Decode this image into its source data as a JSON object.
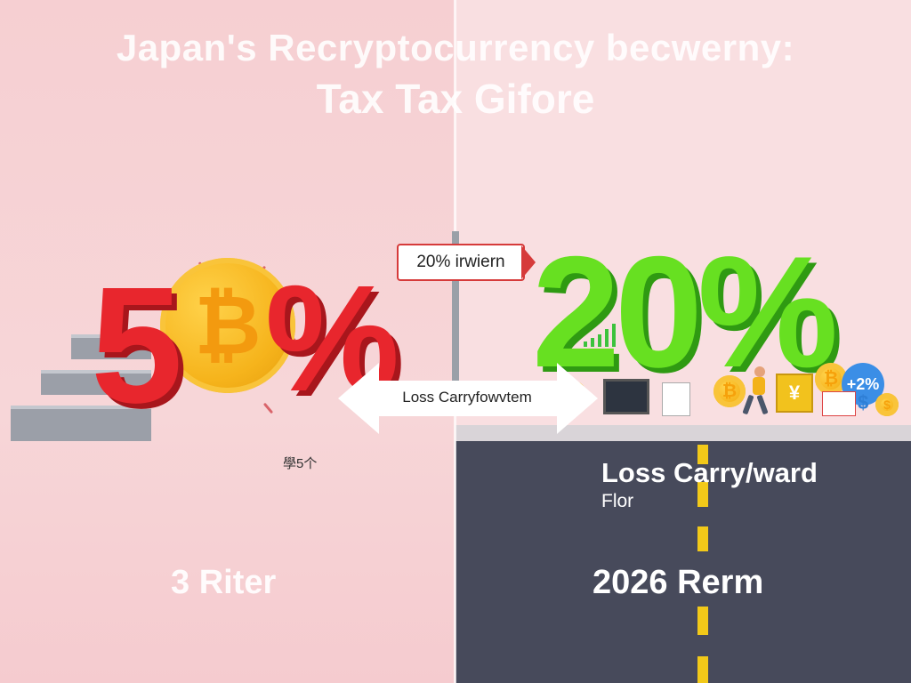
{
  "title": {
    "line1": "Japan's Recryptocurrency becwerny:",
    "line2": "Tax Tax Gifore"
  },
  "left": {
    "rate_digit": "5",
    "rate_symbol": "%",
    "small_label": "學5个",
    "bottom_text": "3 Riter",
    "color": "#e8262d"
  },
  "sign": {
    "label": "20% irwiern"
  },
  "arrow": {
    "label": "Loss Carryfowvtem"
  },
  "right": {
    "rate": "20%",
    "heading": "Loss Carry/ward",
    "subheading": "Flor",
    "bottom_text": "2026 Rerm",
    "color": "#67e021"
  },
  "icons": {
    "coin_symbol": "₿",
    "yen_symbol": "¥",
    "dollar_symbol": "$",
    "badge_text": "+2%"
  }
}
